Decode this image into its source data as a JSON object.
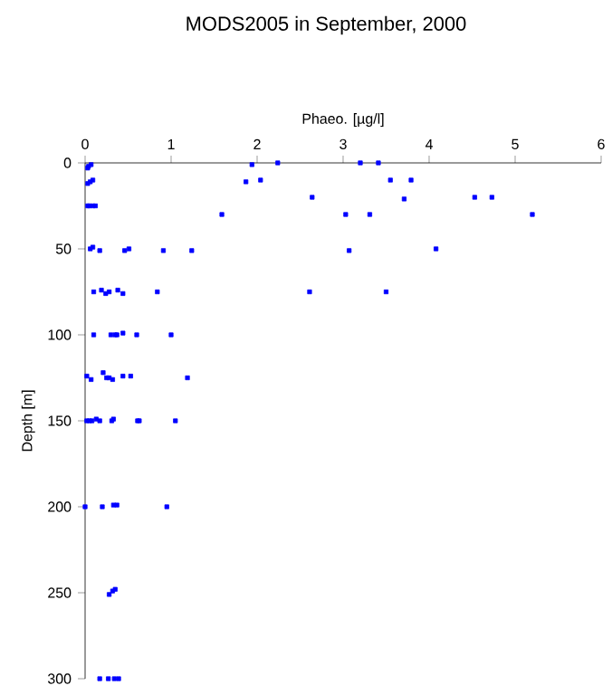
{
  "chart_data": {
    "type": "scatter",
    "title": "MODS2005 in September, 2000",
    "xlabel": "Phaeo. [µg/l]",
    "ylabel": "Depth [m]",
    "xlim": [
      0,
      6
    ],
    "ylim": [
      300,
      0
    ],
    "xticks": [
      0,
      1,
      2,
      3,
      4,
      5,
      6
    ],
    "yticks": [
      0,
      50,
      100,
      150,
      200,
      250,
      300
    ],
    "marker": "square",
    "grid": false,
    "series": [
      {
        "color": "#0000ff",
        "x": [
          0.04,
          0.07,
          0.03,
          0.09,
          0.03,
          0.06,
          0.03,
          0.05,
          0.09,
          0.12,
          1.59,
          1.87,
          1.94,
          2.04,
          2.24,
          2.64,
          3.2,
          3.41,
          3.55,
          3.79,
          3.71,
          4.53,
          4.73,
          3.03,
          3.31,
          5.2,
          3.07,
          4.08,
          2.61,
          3.5,
          0.06,
          0.09,
          0.17,
          0.46,
          0.51,
          0.91,
          1.24,
          0.1,
          0.19,
          0.24,
          0.28,
          0.38,
          0.44,
          0.84,
          0.1,
          0.3,
          0.35,
          0.37,
          0.44,
          0.6,
          1.0,
          0.02,
          0.07,
          0.21,
          0.25,
          0.28,
          0.32,
          0.44,
          0.53,
          1.19,
          0.02,
          0.05,
          0.08,
          0.13,
          0.17,
          0.31,
          0.33,
          0.61,
          0.63,
          1.05,
          0.0,
          0.2,
          0.33,
          0.37,
          0.95,
          0.28,
          0.32,
          0.35,
          0.17,
          0.27,
          0.34,
          0.39
        ],
        "values": [
          2,
          1,
          3,
          10,
          12,
          11,
          25,
          25,
          25,
          25,
          30,
          11,
          1,
          10,
          0,
          20,
          0,
          0,
          10,
          10,
          21,
          20,
          20,
          30,
          30,
          30,
          51,
          50,
          75,
          75,
          50,
          49,
          51,
          51,
          50,
          51,
          51,
          75,
          74,
          76,
          75,
          74,
          76,
          75,
          100,
          100,
          100,
          100,
          99,
          100,
          100,
          124,
          126,
          122,
          125,
          125,
          126,
          124,
          124,
          125,
          150,
          150,
          150,
          149,
          150,
          150,
          149,
          150,
          150,
          150,
          200,
          200,
          199,
          199,
          200,
          251,
          249,
          248,
          300,
          300,
          300,
          300
        ]
      }
    ]
  }
}
